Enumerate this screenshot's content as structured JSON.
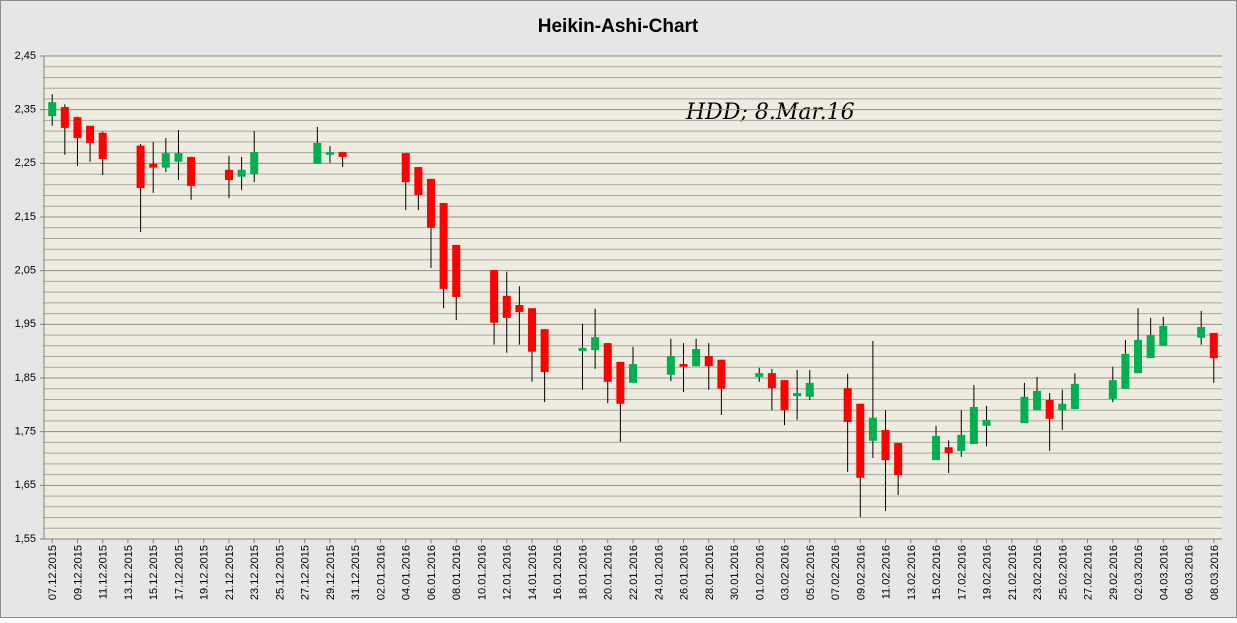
{
  "chart_data": {
    "type": "candlestick",
    "title": "Heikin-Ashi-Chart",
    "annotation": "HDD; 8.Mar.16",
    "up_color": "#00b050",
    "down_color": "#ff0000",
    "grid": true,
    "ylim": [
      1.55,
      2.45
    ],
    "yticks": [
      {
        "value": 1.55,
        "label": "1,55"
      },
      {
        "value": 1.65,
        "label": "1,65"
      },
      {
        "value": 1.75,
        "label": "1,75"
      },
      {
        "value": 1.85,
        "label": "1,85"
      },
      {
        "value": 1.95,
        "label": "1,95"
      },
      {
        "value": 2.05,
        "label": "2,05"
      },
      {
        "value": 2.15,
        "label": "2,15"
      },
      {
        "value": 2.25,
        "label": "2,25"
      },
      {
        "value": 2.35,
        "label": "2,35"
      },
      {
        "value": 2.45,
        "label": "2,45"
      }
    ],
    "minor_yticks": [
      1.57,
      1.59,
      1.61,
      1.63,
      1.67,
      1.69,
      1.71,
      1.73,
      1.77,
      1.79,
      1.81,
      1.83,
      1.87,
      1.89,
      1.91,
      1.93,
      1.97,
      1.99,
      2.01,
      2.03,
      2.07,
      2.09,
      2.11,
      2.13,
      2.17,
      2.19,
      2.21,
      2.23,
      2.27,
      2.29,
      2.31,
      2.33,
      2.37,
      2.39,
      2.41,
      2.43
    ],
    "xticks": [
      "07.12.2015",
      "09.12.2015",
      "11.12.2015",
      "13.12.2015",
      "15.12.2015",
      "17.12.2015",
      "19.12.2015",
      "21.12.2015",
      "23.12.2015",
      "25.12.2015",
      "27.12.2015",
      "29.12.2015",
      "31.12.2015",
      "02.01.2016",
      "04.01.2016",
      "06.01.2016",
      "08.01.2016",
      "10.01.2016",
      "12.01.2016",
      "14.01.2016",
      "16.01.2016",
      "18.01.2016",
      "20.01.2016",
      "22.01.2016",
      "24.01.2016",
      "26.01.2016",
      "28.01.2016",
      "30.01.2016",
      "01.02.2016",
      "03.02.2016",
      "05.02.2016",
      "07.02.2016",
      "09.02.2016",
      "11.02.2016",
      "13.02.2016",
      "15.02.2016",
      "17.02.2016",
      "19.02.2016",
      "21.02.2016",
      "23.02.2016",
      "25.02.2016",
      "27.02.2016",
      "29.02.2016",
      "02.03.2016",
      "04.03.2016",
      "06.03.2016",
      "08.03.2016"
    ],
    "x": [
      "07.12.2015",
      "08.12.2015",
      "09.12.2015",
      "10.12.2015",
      "11.12.2015",
      "14.12.2015",
      "15.12.2015",
      "16.12.2015",
      "17.12.2015",
      "18.12.2015",
      "21.12.2015",
      "22.12.2015",
      "23.12.2015",
      "28.12.2015",
      "29.12.2015",
      "30.12.2015",
      "04.01.2016",
      "05.01.2016",
      "06.01.2016",
      "07.01.2016",
      "08.01.2016",
      "11.01.2016",
      "12.01.2016",
      "13.01.2016",
      "14.01.2016",
      "15.01.2016",
      "18.01.2016",
      "19.01.2016",
      "20.01.2016",
      "21.01.2016",
      "22.01.2016",
      "25.01.2016",
      "26.01.2016",
      "27.01.2016",
      "28.01.2016",
      "29.01.2016",
      "01.02.2016",
      "02.02.2016",
      "03.02.2016",
      "04.02.2016",
      "05.02.2016",
      "08.02.2016",
      "09.02.2016",
      "10.02.2016",
      "11.02.2016",
      "12.02.2016",
      "15.02.2016",
      "16.02.2016",
      "17.02.2016",
      "18.02.2016",
      "19.02.2016",
      "22.02.2016",
      "23.02.2016",
      "24.02.2016",
      "25.02.2016",
      "26.02.2016",
      "29.02.2016",
      "01.03.2016",
      "02.03.2016",
      "03.03.2016",
      "04.03.2016",
      "07.03.2016",
      "08.03.2016"
    ],
    "open": [
      2.338,
      2.355,
      2.336,
      2.32,
      2.307,
      2.283,
      2.249,
      2.242,
      2.253,
      2.262,
      2.238,
      2.225,
      2.23,
      2.249,
      2.266,
      2.271,
      2.269,
      2.243,
      2.221,
      2.176,
      2.098,
      2.051,
      2.003,
      1.986,
      1.98,
      1.941,
      1.9,
      1.902,
      1.915,
      1.88,
      1.841,
      1.856,
      1.876,
      1.872,
      1.891,
      1.884,
      1.852,
      1.859,
      1.846,
      1.816,
      1.815,
      1.831,
      1.802,
      1.733,
      1.753,
      1.729,
      1.697,
      1.721,
      1.714,
      1.727,
      1.761,
      1.766,
      1.79,
      1.809,
      1.79,
      1.792,
      1.811,
      1.83,
      1.859,
      1.887,
      1.91,
      1.925,
      1.934
    ],
    "high": [
      2.379,
      2.36,
      2.337,
      2.32,
      2.309,
      2.286,
      2.29,
      2.297,
      2.312,
      2.262,
      2.264,
      2.262,
      2.31,
      2.318,
      2.282,
      2.271,
      2.269,
      2.243,
      2.221,
      2.176,
      2.098,
      2.051,
      2.048,
      2.021,
      1.98,
      1.941,
      1.951,
      1.979,
      1.915,
      1.88,
      1.908,
      1.923,
      1.915,
      1.923,
      1.915,
      1.884,
      1.869,
      1.867,
      1.846,
      1.865,
      1.865,
      1.858,
      1.802,
      1.919,
      1.79,
      1.729,
      1.761,
      1.734,
      1.79,
      1.837,
      1.798,
      1.841,
      1.852,
      1.822,
      1.828,
      1.859,
      1.871,
      1.921,
      1.98,
      1.962,
      1.964,
      1.975,
      1.934
    ],
    "low": [
      2.32,
      2.266,
      2.245,
      2.253,
      2.228,
      2.122,
      2.195,
      2.234,
      2.219,
      2.182,
      2.185,
      2.2,
      2.215,
      2.249,
      2.251,
      2.243,
      2.163,
      2.163,
      2.055,
      1.98,
      1.958,
      1.912,
      1.897,
      1.912,
      1.843,
      1.805,
      1.828,
      1.867,
      1.803,
      1.731,
      1.841,
      1.844,
      1.824,
      1.872,
      1.828,
      1.781,
      1.843,
      1.79,
      1.762,
      1.772,
      1.809,
      1.675,
      1.591,
      1.701,
      1.602,
      1.632,
      1.697,
      1.673,
      1.703,
      1.727,
      1.723,
      1.766,
      1.79,
      1.714,
      1.753,
      1.792,
      1.805,
      1.83,
      1.859,
      1.887,
      1.91,
      1.912,
      1.841
    ],
    "close": [
      2.364,
      2.316,
      2.297,
      2.288,
      2.258,
      2.204,
      2.242,
      2.269,
      2.269,
      2.208,
      2.219,
      2.238,
      2.271,
      2.288,
      2.271,
      2.262,
      2.215,
      2.191,
      2.13,
      2.016,
      2.001,
      1.953,
      1.962,
      1.973,
      1.899,
      1.861,
      1.906,
      1.926,
      1.843,
      1.802,
      1.876,
      1.891,
      1.871,
      1.904,
      1.872,
      1.83,
      1.859,
      1.831,
      1.79,
      1.822,
      1.841,
      1.768,
      1.664,
      1.776,
      1.697,
      1.669,
      1.742,
      1.71,
      1.744,
      1.796,
      1.772,
      1.815,
      1.826,
      1.774,
      1.802,
      1.839,
      1.846,
      1.895,
      1.921,
      1.93,
      1.947,
      1.945,
      1.887
    ]
  }
}
